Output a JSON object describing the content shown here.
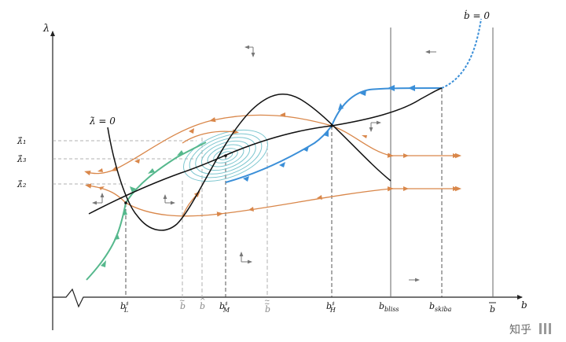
{
  "axes": {
    "y_label": "λ",
    "x_label": "b"
  },
  "curve_labels": {
    "lambda_dot": "λ̇ = 0",
    "b_dot": "ḃ = 0"
  },
  "y_ticks": [
    "λ̂₁",
    "λ̂₃",
    "λ̂₂"
  ],
  "x_ticks": {
    "bL": "b♯L",
    "b_tilde": "b̃",
    "b_hat": "b̂",
    "bM": "b♯M",
    "b_dtilde": "b̃̃",
    "bH": "b♯H",
    "b_bliss": "bbliss",
    "b_skiba": "bskiba",
    "b_bar": "b̄"
  },
  "x_tick_parts": {
    "bL_base": "b",
    "bL_sup": "♯",
    "bL_sub": "L",
    "bM_base": "b",
    "bM_sup": "♯",
    "bM_sub": "M",
    "bH_base": "b",
    "bH_sup": "♯",
    "bH_sub": "H",
    "bliss_base": "b",
    "bliss_sub": "bliss",
    "skiba_base": "b",
    "skiba_sub": "skiba",
    "bar_base": "b",
    "tilde_base": "b",
    "hat_base": "b",
    "dtilde_base": "b"
  },
  "colors": {
    "axis": "#222222",
    "orange": "#d9874a",
    "blue": "#3b8fd8",
    "green": "#56b88d",
    "spiral": "#7cc6cf",
    "dashed": "#666666",
    "gray_dashed": "#aaaaaa"
  },
  "watermark": "知乎"
}
